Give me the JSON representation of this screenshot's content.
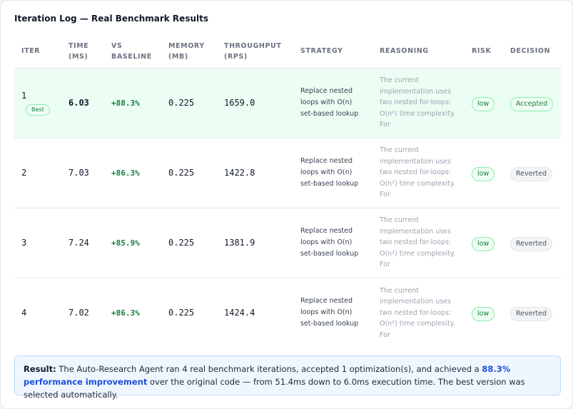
{
  "panel": {
    "title": "Iteration Log — Real Benchmark Results"
  },
  "table": {
    "headers": {
      "iter": "ITER",
      "time": "TIME (MS)",
      "vs_baseline": "VS BASELINE",
      "memory": "MEMORY (MB)",
      "throughput": "THROUGHPUT (RPS)",
      "strategy": "STRATEGY",
      "reasoning": "REASONING",
      "risk": "RISK",
      "decision": "DECISION"
    },
    "rows": [
      {
        "iter": "1",
        "badge": "Best",
        "time": "6.03",
        "vs_baseline": "+88.3%",
        "memory": "0.225",
        "throughput": "1659.0",
        "strategy": "Replace nested loops with O(n) set-based lookup",
        "reasoning": "The current implementation uses two nested for-loops: O(n²) time complexity. For",
        "risk": "low",
        "decision": "Accepted"
      },
      {
        "iter": "2",
        "time": "7.03",
        "vs_baseline": "+86.3%",
        "memory": "0.225",
        "throughput": "1422.8",
        "strategy": "Replace nested loops with O(n) set-based lookup",
        "reasoning": "The current implementation uses two nested for-loops: O(n²) time complexity. For",
        "risk": "low",
        "decision": "Reverted"
      },
      {
        "iter": "3",
        "time": "7.24",
        "vs_baseline": "+85.9%",
        "memory": "0.225",
        "throughput": "1381.9",
        "strategy": "Replace nested loops with O(n) set-based lookup",
        "reasoning": "The current implementation uses two nested for-loops: O(n²) time complexity. For",
        "risk": "low",
        "decision": "Reverted"
      },
      {
        "iter": "4",
        "time": "7.02",
        "vs_baseline": "+86.3%",
        "memory": "0.225",
        "throughput": "1424.4",
        "strategy": "Replace nested loops with O(n) set-based lookup",
        "reasoning": "The current implementation uses two nested for-loops: O(n²) time complexity. For",
        "risk": "low",
        "decision": "Reverted"
      }
    ]
  },
  "result": {
    "label": "Result:",
    "text_before": "The Auto-Research Agent ran 4 real benchmark iterations, accepted 1 optimization(s), and achieved a",
    "highlight": "88.3% performance improvement",
    "text_after": "over the original code — from 51.4ms down to 6.0ms execution time. The best version was selected automatically."
  },
  "colors": {
    "accent_green": "#15803d",
    "best_row_bg": "#ecfdf3",
    "accent_blue": "#1d4ed8"
  }
}
